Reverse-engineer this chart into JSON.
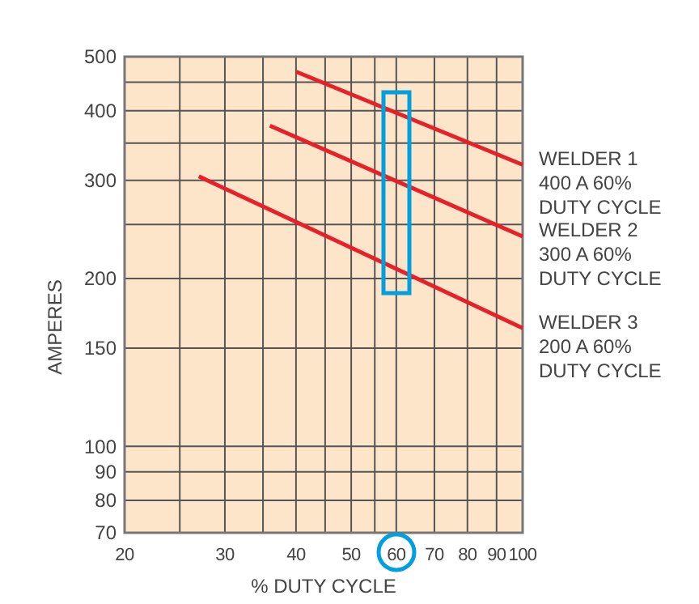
{
  "chart_data": {
    "type": "line",
    "xlabel": "% DUTY CYCLE",
    "ylabel": "AMPERES",
    "log": "xy",
    "grid": true,
    "marker": "none",
    "line_style": "solid",
    "xlim": [
      20,
      100
    ],
    "ylim": [
      70,
      500
    ],
    "xticks": [
      20,
      {
        "value": 25,
        "label": null
      },
      30,
      {
        "value": 35,
        "label": null
      },
      40,
      {
        "value": 45,
        "label": null
      },
      50,
      {
        "value": 55,
        "label": null
      },
      60,
      70,
      80,
      90,
      100
    ],
    "yticks": [
      70,
      80,
      90,
      100,
      150,
      200,
      {
        "value": 250,
        "label": null
      },
      300,
      {
        "value": 350,
        "label": null
      },
      400,
      {
        "value": 450,
        "label": null
      },
      500
    ],
    "series": [
      {
        "name": "WELDER 1\n400 A 60%\nDUTY CYCLE",
        "color": "#e8202a",
        "x": [
          40,
          100
        ],
        "values": [
          470,
          320
        ]
      },
      {
        "name": "WELDER 2\n300 A 60%\nDUTY CYCLE",
        "color": "#e8202a",
        "x": [
          36,
          100
        ],
        "values": [
          376,
          238
        ]
      },
      {
        "name": "WELDER 3\n200 A 60%\nDUTY CYCLE",
        "color": "#e8202a",
        "x": [
          27,
          100
        ],
        "values": [
          305,
          163
        ]
      }
    ]
  }
}
